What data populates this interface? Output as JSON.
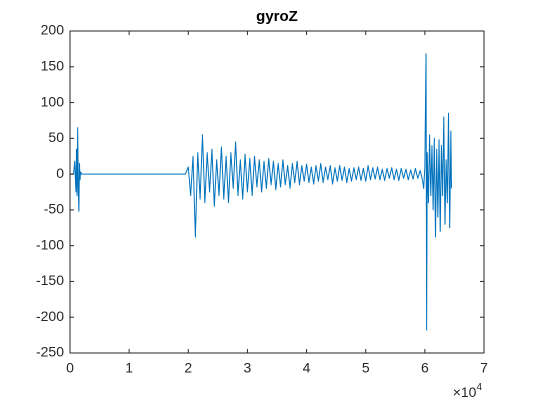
{
  "chart_data": {
    "type": "line",
    "title": "gyroZ",
    "x_multiplier_base": "×10",
    "x_multiplier_exponent": "4",
    "xlim": [
      0,
      70000
    ],
    "xticks": [
      0,
      {
        "value": 10000,
        "label": "1"
      },
      {
        "value": 20000,
        "label": "2"
      },
      {
        "value": 30000,
        "label": "3"
      },
      {
        "value": 40000,
        "label": "4"
      },
      {
        "value": 50000,
        "label": "5"
      },
      {
        "value": 60000,
        "label": "6"
      },
      {
        "value": 70000,
        "label": "7"
      }
    ],
    "ylim": [
      -250,
      200
    ],
    "yticks": [
      -250,
      -200,
      -150,
      -100,
      -50,
      0,
      50,
      100,
      150,
      200
    ],
    "series": [
      {
        "color": "#0072bd",
        "x": [
          0,
          600,
          800,
          1000,
          1100,
          1200,
          1300,
          1400,
          1500,
          1600,
          1700,
          1800,
          2000,
          2500,
          5000,
          10000,
          15000,
          19500,
          20000,
          20400,
          20800,
          21200,
          21600,
          22000,
          22400,
          22800,
          23200,
          23600,
          24000,
          24400,
          24800,
          25200,
          25600,
          26000,
          26400,
          26800,
          27200,
          27600,
          28000,
          28400,
          28800,
          29200,
          29600,
          30000,
          30400,
          30800,
          31200,
          31600,
          32000,
          32400,
          32800,
          33200,
          33600,
          34000,
          34400,
          34800,
          35200,
          35600,
          36000,
          36400,
          36800,
          37200,
          37600,
          38000,
          38400,
          38800,
          39200,
          39600,
          40000,
          40400,
          40800,
          41200,
          41600,
          42000,
          42400,
          42800,
          43200,
          43600,
          44000,
          44400,
          44800,
          45200,
          45600,
          46000,
          46400,
          46800,
          47200,
          47600,
          48000,
          48400,
          48800,
          49200,
          49600,
          50000,
          50400,
          50800,
          51200,
          51600,
          52000,
          52400,
          52800,
          53200,
          53600,
          54000,
          54400,
          54800,
          55200,
          55600,
          56000,
          56400,
          56800,
          57200,
          57600,
          58000,
          58400,
          58800,
          59200,
          59600,
          59800,
          60000,
          60200,
          60300,
          60400,
          60600,
          60800,
          61000,
          61200,
          61400,
          61600,
          61800,
          62000,
          62200,
          62400,
          62600,
          62800,
          63000,
          63200,
          63400,
          63600,
          63800,
          64000,
          64200,
          64400,
          64500
        ],
        "values": [
          0,
          0,
          18,
          -25,
          35,
          -30,
          65,
          -20,
          -52,
          15,
          -8,
          3,
          0,
          0,
          0,
          0,
          0,
          0,
          10,
          -30,
          25,
          -88,
          30,
          -35,
          55,
          -40,
          30,
          -25,
          35,
          -45,
          20,
          -30,
          38,
          -35,
          25,
          -40,
          30,
          -20,
          45,
          -30,
          20,
          -35,
          28,
          -25,
          22,
          -30,
          25,
          -18,
          20,
          -25,
          18,
          -20,
          22,
          -15,
          18,
          -22,
          15,
          -18,
          20,
          -15,
          12,
          -20,
          15,
          -12,
          18,
          -15,
          12,
          -10,
          14,
          -12,
          10,
          -14,
          12,
          -10,
          15,
          -12,
          10,
          -8,
          12,
          -14,
          9,
          -10,
          12,
          -9,
          10,
          -12,
          8,
          -10,
          9,
          -8,
          10,
          -9,
          8,
          -10,
          12,
          -8,
          9,
          -7,
          10,
          -8,
          7,
          -9,
          8,
          -6,
          9,
          -8,
          7,
          -9,
          8,
          -6,
          7,
          -8,
          6,
          -7,
          8,
          -6,
          5,
          -8,
          -20,
          10,
          168,
          -218,
          30,
          -40,
          55,
          -30,
          40,
          -50,
          50,
          -88,
          35,
          -60,
          48,
          -80,
          40,
          -30,
          80,
          -70,
          20,
          -40,
          85,
          -75,
          60,
          -20
        ]
      }
    ]
  }
}
